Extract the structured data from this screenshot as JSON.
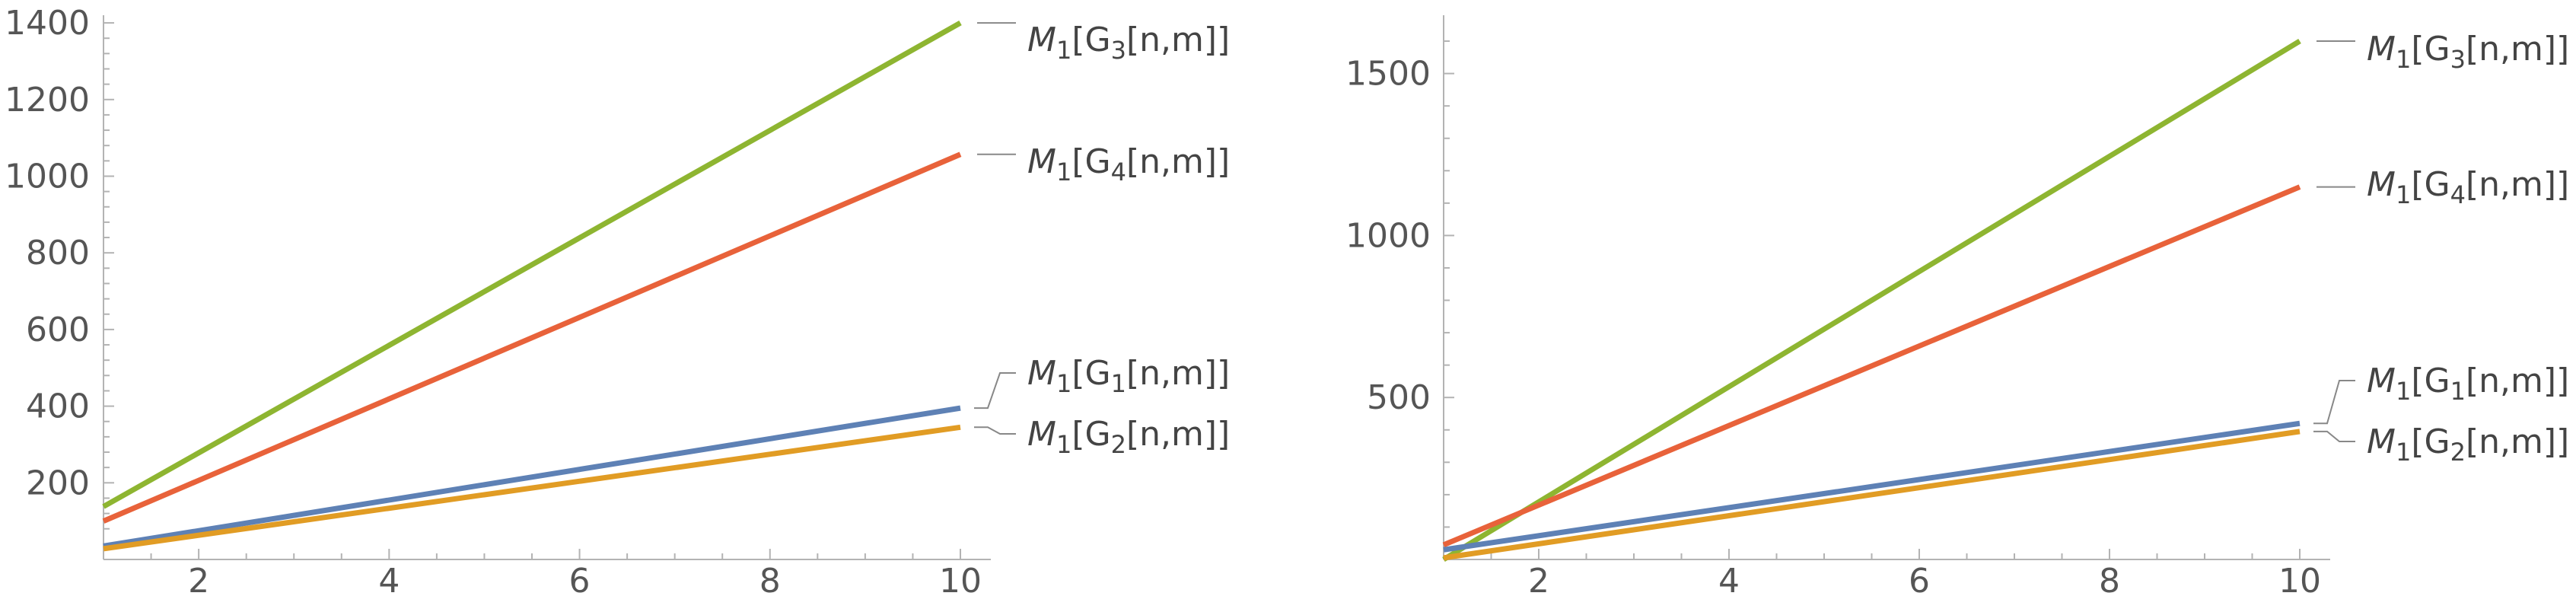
{
  "chart_data": [
    {
      "type": "line",
      "xlim": [
        1,
        10
      ],
      "ylim": [
        0,
        1420
      ],
      "x_ticks": [
        "2",
        "4",
        "6",
        "8",
        "10"
      ],
      "y_ticks": [
        "200",
        "400",
        "600",
        "800",
        "1000",
        "1200",
        "1400"
      ],
      "grid": false,
      "legend_placement": "right",
      "series": [
        {
          "name_main": "M",
          "name_sub1": "1",
          "name_mid": "[G",
          "name_sub2": "3",
          "name_end": "[n,m]]",
          "color": "#8EB531",
          "x": [
            1,
            10
          ],
          "y": [
            138,
            1400
          ]
        },
        {
          "name_main": "M",
          "name_sub1": "1",
          "name_mid": "[G",
          "name_sub2": "4",
          "name_end": "[n,m]]",
          "color": "#E8623A",
          "x": [
            1,
            10
          ],
          "y": [
            100,
            1057
          ]
        },
        {
          "name_main": "M",
          "name_sub1": "1",
          "name_mid": "[G",
          "name_sub2": "1",
          "name_end": "[n,m]]",
          "color": "#5E81B5",
          "x": [
            1,
            10
          ],
          "y": [
            35,
            395
          ]
        },
        {
          "name_main": "M",
          "name_sub1": "1",
          "name_mid": "[G",
          "name_sub2": "2",
          "name_end": "[n,m]]",
          "color": "#E19C24",
          "x": [
            1,
            10
          ],
          "y": [
            28,
            345
          ]
        }
      ]
    },
    {
      "type": "line",
      "xlim": [
        1,
        10
      ],
      "ylim": [
        0,
        1680
      ],
      "x_ticks": [
        "2",
        "4",
        "6",
        "8",
        "10"
      ],
      "y_ticks": [
        "500",
        "1000",
        "1500"
      ],
      "grid": false,
      "legend_placement": "right",
      "series": [
        {
          "name_main": "M",
          "name_sub1": "1",
          "name_mid": "[G",
          "name_sub2": "3",
          "name_end": "[n,m]]",
          "color": "#8EB531",
          "x": [
            1,
            10
          ],
          "y": [
            0,
            1600
          ]
        },
        {
          "name_main": "M",
          "name_sub1": "1",
          "name_mid": "[G",
          "name_sub2": "4",
          "name_end": "[n,m]]",
          "color": "#E8623A",
          "x": [
            1,
            10
          ],
          "y": [
            45,
            1150
          ]
        },
        {
          "name_main": "M",
          "name_sub1": "1",
          "name_mid": "[G",
          "name_sub2": "1",
          "name_end": "[n,m]]",
          "color": "#5E81B5",
          "x": [
            1,
            10
          ],
          "y": [
            30,
            420
          ]
        },
        {
          "name_main": "M",
          "name_sub1": "1",
          "name_mid": "[G",
          "name_sub2": "2",
          "name_end": "[n,m]]",
          "color": "#E19C24",
          "x": [
            1,
            10
          ],
          "y": [
            5,
            395
          ]
        }
      ]
    }
  ]
}
